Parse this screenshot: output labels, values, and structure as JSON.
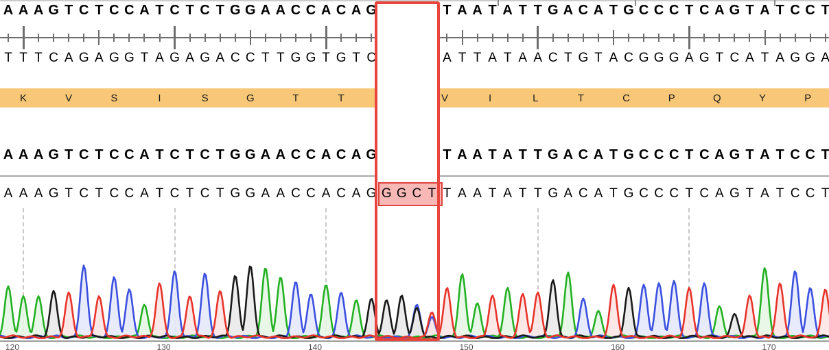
{
  "view": {
    "description": "sequence alignment with chromatogram trace and insertion selection"
  },
  "reference_top": {
    "left_seq": "AAAGTCTCCATCTCTGGAACCACAG",
    "right_seq": "TAATATTGACATGCCCTCAGTATCCT"
  },
  "complement": {
    "left_seq": "TTTCAGAGGTAGAGACCTTGGTGTC",
    "right_seq": "ATTATAACTGTACGGGAGTCATAGGA"
  },
  "translation": {
    "left_residues": [
      "K",
      "V",
      "S",
      "I",
      "S",
      "G",
      "T",
      "T"
    ],
    "right_residues": [
      "V",
      "I",
      "L",
      "T",
      "C",
      "P",
      "Q",
      "Y",
      "P"
    ],
    "band_color": "#f8c878"
  },
  "reference_bottom": {
    "left_seq": "AAAGTCTCCATCTCTGGAACCACAG",
    "right_seq": "TAATATTGACATGCCCTCAGTATCCT"
  },
  "read": {
    "seq": "AAAGTCTCCATCTCTGGAACCACAGGGCTTAATATTGACATGCCCTCAGTATCCT",
    "insertion_seq": "GGCT",
    "insertion_start_col": 25,
    "insertion_end_col": 28
  },
  "selection": {
    "border_color": "#e8453e",
    "highlight_fill": "#f8b8b6",
    "highlight_border": "#e0423c"
  },
  "ruler": {
    "tall_tick_cols": [
      1,
      11,
      21,
      35,
      45
    ],
    "medium_tick_cols": [
      6,
      16,
      30,
      40,
      50
    ],
    "top_tick_x": [
      725,
      925,
      1128
    ]
  },
  "chromatogram": {
    "gridline_cols": [
      1,
      11,
      21,
      35,
      45
    ],
    "position_labels": [
      {
        "text": "120",
        "col": 0
      },
      {
        "text": "130",
        "col": 10
      },
      {
        "text": "140",
        "col": 20
      },
      {
        "text": "150",
        "col": 30
      },
      {
        "text": "160",
        "col": 40
      },
      {
        "text": "170",
        "col": 50
      }
    ],
    "base_stroke_colors": {
      "A": "#23b123",
      "C": "#3c50e0",
      "G": "#1a1a1a",
      "T": "#e8332a"
    },
    "base_fill_colors": {
      "A": "#e4f6e4",
      "C": "#e3e8fb",
      "G": "#e9e9e9",
      "T": "#fce5e3"
    },
    "peak_heights": [
      0.68,
      0.55,
      0.55,
      0.62,
      0.6,
      0.95,
      0.55,
      0.8,
      0.64,
      0.44,
      0.72,
      0.88,
      0.55,
      0.85,
      0.62,
      0.82,
      0.95,
      0.92,
      0.8,
      0.74,
      0.58,
      0.7,
      0.6,
      0.5,
      0.52,
      0.5,
      0.56,
      0.44,
      0.34,
      0.66,
      0.84,
      0.46,
      0.56,
      0.66,
      0.58,
      0.6,
      0.76,
      0.86,
      0.52,
      0.36,
      0.7,
      0.66,
      0.7,
      0.72,
      0.75,
      0.66,
      0.72,
      0.42,
      0.32,
      0.56,
      0.92,
      0.72,
      0.88,
      0.66,
      0.64
    ],
    "extra_peaks": [
      {
        "col": 27,
        "base": "G",
        "h": 0.4
      },
      {
        "col": 28,
        "base": "C",
        "h": 0.28
      },
      {
        "col": 24,
        "base": "G",
        "h": 0.1
      }
    ]
  }
}
